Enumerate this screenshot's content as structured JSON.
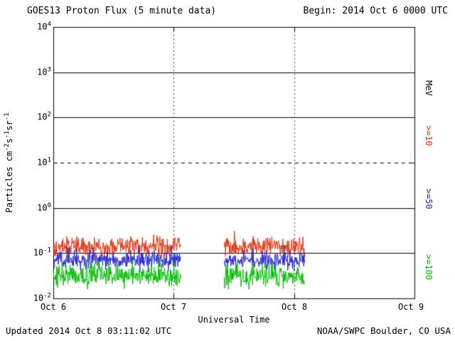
{
  "chart": {
    "title": "GOES13 Proton Flux (5 minute data)",
    "begin_label": "Begin: 2014 Oct 6 0000 UTC",
    "xlabel": "Universal Time",
    "ylabel_parts": {
      "p1": "Particles cm",
      "e1": "-2",
      "p2": "s",
      "e2": "-1",
      "p3": "sr",
      "e3": "-1"
    },
    "y_ticks": [
      {
        "base": "10",
        "exp": "4",
        "value": 10000
      },
      {
        "base": "10",
        "exp": "3",
        "value": 1000
      },
      {
        "base": "10",
        "exp": "2",
        "value": 100
      },
      {
        "base": "10",
        "exp": "1",
        "value": 10
      },
      {
        "base": "10",
        "exp": "0",
        "value": 1
      },
      {
        "base": "10",
        "exp": "-1",
        "value": 0.1
      },
      {
        "base": "10",
        "exp": "-2",
        "value": 0.01
      }
    ],
    "x_ticks": [
      {
        "label": "Oct 6",
        "value": 6
      },
      {
        "label": "Oct 7",
        "value": 7
      },
      {
        "label": "Oct 8",
        "value": 8
      },
      {
        "label": "Oct 9",
        "value": 9
      }
    ],
    "right_labels": [
      {
        "text": "MeV",
        "color": "#000000"
      },
      {
        "text": ">=10",
        "color": "#dd3311"
      },
      {
        "text": ">=50",
        "color": "#2222cc"
      },
      {
        "text": ">=100",
        "color": "#00bb00"
      }
    ],
    "footer_left": "Updated 2014 Oct 8 03:11:02 UTC",
    "footer_right": "NOAA/SWPC Boulder, CO USA"
  },
  "chart_data": {
    "type": "line",
    "title": "GOES13 Proton Flux (5 minute data)",
    "subtitle": "Begin: 2014 Oct 6 0000 UTC",
    "xlabel": "Universal Time",
    "ylabel": "Particles cm^-2 s^-1 sr^-1",
    "x_unit": "day of 2014 Oct (UTC)",
    "xlim": [
      6,
      9
    ],
    "ylim": [
      0.01,
      10000
    ],
    "yscale": "log",
    "x_tick_values": [
      6,
      7,
      8,
      9
    ],
    "x_tick_labels": [
      "Oct 6",
      "Oct 7",
      "Oct 8",
      "Oct 9"
    ],
    "cadence_minutes": 5,
    "gridlines_h": [
      {
        "y": 1000,
        "style": "solid"
      },
      {
        "y": 100,
        "style": "solid"
      },
      {
        "y": 10,
        "style": "dashed"
      },
      {
        "y": 1,
        "style": "solid"
      },
      {
        "y": 0.1,
        "style": "solid"
      }
    ],
    "gridlines_v": [
      {
        "x": 7,
        "style": "dotted"
      },
      {
        "x": 8,
        "style": "dotted"
      }
    ],
    "data_gap": [
      7.06,
      7.42
    ],
    "data_end": 8.09,
    "series": [
      {
        "name": ">=10 MeV",
        "color": "#dd3311",
        "median_flux": 0.14,
        "range": [
          0.06,
          0.35
        ],
        "log_noise": 0.22,
        "seed": 101,
        "segments": [
          [
            6.0,
            7.06
          ],
          [
            7.42,
            8.09
          ]
        ]
      },
      {
        "name": ">=50 MeV",
        "color": "#2222cc",
        "median_flux": 0.07,
        "range": [
          0.035,
          0.15
        ],
        "log_noise": 0.2,
        "seed": 202,
        "segments": [
          [
            6.0,
            7.06
          ],
          [
            7.42,
            8.09
          ]
        ]
      },
      {
        "name": ">=100 MeV",
        "color": "#00bb00",
        "median_flux": 0.032,
        "range": [
          0.014,
          0.07
        ],
        "log_noise": 0.24,
        "seed": 303,
        "segments": [
          [
            6.0,
            7.06
          ],
          [
            7.42,
            8.09
          ]
        ]
      }
    ],
    "legend_position": "right-vertical"
  }
}
